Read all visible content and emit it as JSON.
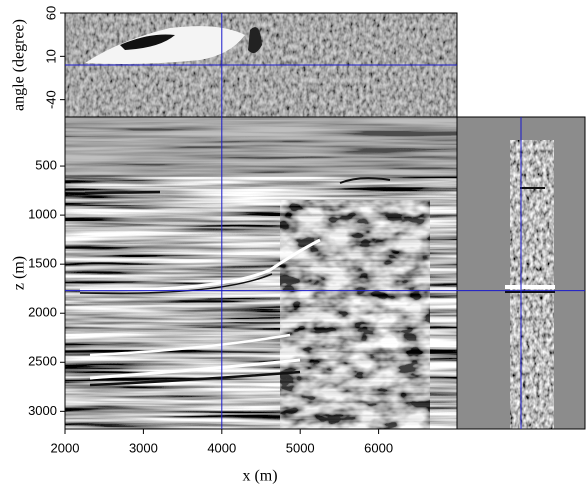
{
  "chart_data": {
    "type": "image",
    "xlabel": "x (m)",
    "ylabel": "z (m)",
    "angle_label": "angle (degree)",
    "xlim": [
      2000,
      7000
    ],
    "xticks": [
      2000,
      3000,
      4000,
      5000,
      6000
    ],
    "ylim": [
      0,
      3180
    ],
    "yticks": [
      500,
      1000,
      1500,
      2000,
      2500,
      3000
    ],
    "anglelim": [
      -60,
      60
    ],
    "angleticks": [
      -40,
      10,
      60
    ],
    "crosshair": {
      "x": 4000,
      "z": 1770,
      "angle": 0
    },
    "crosshair_color": "#1a1acc"
  }
}
